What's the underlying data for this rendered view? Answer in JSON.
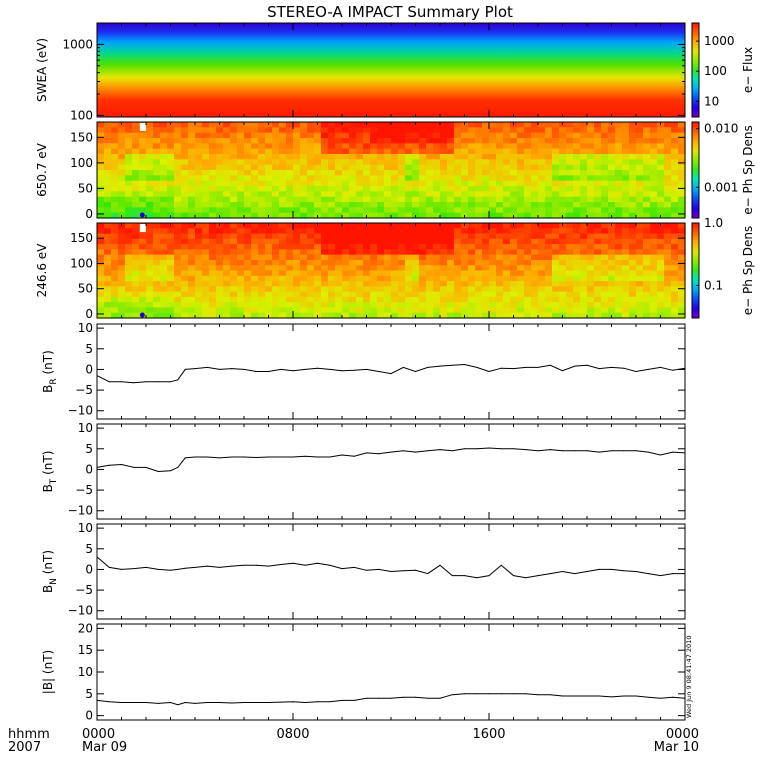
{
  "title": "STEREO-A IMPACT Summary Plot",
  "stamp": "Wed Jun 9 08:41:47 2010",
  "time_axis": {
    "corner_labels": [
      "hhmm",
      "2007"
    ],
    "ticks": [
      {
        "hour": 0,
        "label": "0000",
        "sub": "Mar 09"
      },
      {
        "hour": 8,
        "label": "0800",
        "sub": ""
      },
      {
        "hour": 16,
        "label": "1600",
        "sub": ""
      },
      {
        "hour": 24,
        "label": "0000",
        "sub": "Mar 10"
      }
    ],
    "range_hours": [
      0,
      24
    ]
  },
  "chart_data": [
    {
      "type": "heatmap",
      "ylabel": "SWEA (eV)",
      "yscale": "log",
      "ylim": [
        95,
        2000
      ],
      "yticks": [
        100,
        1000
      ],
      "ytick_labels": [
        "100",
        "1000"
      ],
      "colorbar": {
        "label": "e− Flux",
        "scale": "log",
        "range": [
          3,
          4000
        ],
        "ticks": [
          10,
          100,
          1000
        ],
        "tick_labels": [
          "10",
          "100",
          "1000"
        ]
      },
      "colors": {
        "low": "#1a00d8",
        "mid": "#38e000",
        "high": "#ff2000"
      }
    },
    {
      "type": "heatmap",
      "ylabel": "650.7 eV",
      "ylim": [
        -8,
        180
      ],
      "yticks": [
        0,
        50,
        100,
        150
      ],
      "ytick_labels": [
        "0",
        "50",
        "100",
        "150"
      ],
      "colorbar": {
        "label": "e− Ph Sp Dens",
        "scale": "log",
        "range": [
          0.0003,
          0.013
        ],
        "ticks": [
          0.001,
          0.01
        ],
        "tick_labels": [
          "0.001",
          "0.010"
        ]
      }
    },
    {
      "type": "heatmap",
      "ylabel": "246.6 eV",
      "ylim": [
        -8,
        180
      ],
      "yticks": [
        0,
        50,
        100,
        150
      ],
      "ytick_labels": [
        "0",
        "50",
        "100",
        "150"
      ],
      "colorbar": {
        "label": "e− Ph Sp Dens",
        "scale": "log",
        "range": [
          0.03,
          1.0
        ],
        "ticks": [
          0.1,
          1.0
        ],
        "tick_labels": [
          "0.1",
          "1.0"
        ]
      }
    },
    {
      "type": "line",
      "ylabel_main": "B",
      "ylabel_sub": "R",
      "ylabel_unit": " (nT)",
      "ylim": [
        -12,
        11
      ],
      "yticks": [
        -10,
        -5,
        0,
        5,
        10
      ],
      "ytick_labels": [
        "−10",
        "−5",
        "0",
        "5",
        "10"
      ],
      "x": [
        0,
        0.5,
        1,
        1.5,
        2,
        2.5,
        3,
        3.3,
        3.6,
        4,
        4.5,
        5,
        5.5,
        6,
        6.5,
        7,
        7.5,
        8,
        8.5,
        9,
        9.5,
        10,
        10.5,
        11,
        11.5,
        12,
        12.5,
        13,
        13.5,
        14,
        14.5,
        15,
        15.5,
        16,
        16.5,
        17,
        17.5,
        18,
        18.5,
        19,
        19.5,
        20,
        20.5,
        21,
        21.5,
        22,
        22.5,
        23,
        23.5,
        24
      ],
      "y": [
        -1.5,
        -3,
        -3,
        -3.2,
        -3,
        -3,
        -3,
        -2.5,
        0,
        0.2,
        0.5,
        0,
        0.2,
        0,
        -0.5,
        -0.5,
        0,
        -0.3,
        0,
        0.3,
        0,
        -0.3,
        -0.2,
        0,
        -0.5,
        -1,
        0.5,
        -0.5,
        0.5,
        0.8,
        1,
        1.2,
        0.5,
        -0.5,
        0.3,
        0.2,
        0.5,
        0.5,
        1,
        -0.3,
        0.8,
        1,
        0.2,
        0.5,
        0.3,
        -0.5,
        0,
        0.5,
        -0.2,
        0.3
      ]
    },
    {
      "type": "line",
      "ylabel_main": "B",
      "ylabel_sub": "T",
      "ylabel_unit": " (nT)",
      "ylim": [
        -12,
        11
      ],
      "yticks": [
        -10,
        -5,
        0,
        5,
        10
      ],
      "ytick_labels": [
        "−10",
        "−5",
        "0",
        "5",
        "10"
      ],
      "x": [
        0,
        0.5,
        1,
        1.5,
        2,
        2.5,
        3,
        3.3,
        3.6,
        4,
        4.5,
        5,
        5.5,
        6,
        6.5,
        7,
        7.5,
        8,
        8.5,
        9,
        9.5,
        10,
        10.5,
        11,
        11.5,
        12,
        12.5,
        13,
        13.5,
        14,
        14.5,
        15,
        15.5,
        16,
        16.5,
        17,
        17.5,
        18,
        18.5,
        19,
        19.5,
        20,
        20.5,
        21,
        21.5,
        22,
        22.5,
        23,
        23.5,
        24
      ],
      "y": [
        0.5,
        1,
        1.2,
        0.5,
        0.5,
        -0.5,
        -0.3,
        0.5,
        2.8,
        3,
        3,
        2.8,
        3,
        3,
        2.9,
        3,
        3,
        3,
        3.2,
        3,
        3,
        3.5,
        3.2,
        4,
        3.8,
        4.2,
        4.5,
        4.2,
        4.5,
        4.8,
        4.5,
        5,
        5,
        5.2,
        5,
        5,
        4.8,
        4.5,
        4.8,
        4.5,
        4.5,
        4.5,
        4.2,
        4.5,
        4.5,
        4.5,
        4.2,
        3.5,
        4.2,
        4
      ]
    },
    {
      "type": "line",
      "ylabel_main": "B",
      "ylabel_sub": "N",
      "ylabel_unit": " (nT)",
      "ylim": [
        -12,
        11
      ],
      "yticks": [
        -10,
        -5,
        0,
        5,
        10
      ],
      "ytick_labels": [
        "−10",
        "−5",
        "0",
        "5",
        "10"
      ],
      "x": [
        0,
        0.5,
        1,
        1.5,
        2,
        2.5,
        3,
        3.3,
        3.6,
        4,
        4.5,
        5,
        5.5,
        6,
        6.5,
        7,
        7.5,
        8,
        8.5,
        9,
        9.5,
        10,
        10.5,
        11,
        11.5,
        12,
        12.5,
        13,
        13.5,
        14,
        14.5,
        15,
        15.5,
        16,
        16.5,
        17,
        17.5,
        18,
        18.5,
        19,
        19.5,
        20,
        20.5,
        21,
        21.5,
        22,
        22.5,
        23,
        23.5,
        24
      ],
      "y": [
        3,
        0.5,
        0,
        0.2,
        0.5,
        0,
        -0.2,
        0,
        0.3,
        0.5,
        0.8,
        0.5,
        0.8,
        1,
        1,
        0.8,
        1.2,
        1.5,
        1,
        1.5,
        1,
        0.2,
        0.5,
        -0.2,
        0,
        -0.5,
        -0.3,
        -0.2,
        -1,
        1,
        -1.5,
        -1.5,
        -2,
        -1.5,
        1,
        -1.5,
        -2,
        -1.5,
        -1,
        -0.5,
        -1,
        -0.5,
        0,
        0,
        -0.3,
        -0.5,
        -1,
        -1.5,
        -1,
        -1
      ]
    },
    {
      "type": "line",
      "ylabel_main": "|B|",
      "ylabel_sub": "",
      "ylabel_unit": " (nT)",
      "ylim": [
        -1,
        21
      ],
      "yticks": [
        0,
        5,
        10,
        15,
        20
      ],
      "ytick_labels": [
        "0",
        "5",
        "10",
        "15",
        "20"
      ],
      "x": [
        0,
        0.5,
        1,
        1.5,
        2,
        2.5,
        3,
        3.3,
        3.6,
        4,
        4.5,
        5,
        5.5,
        6,
        6.5,
        7,
        7.5,
        8,
        8.5,
        9,
        9.5,
        10,
        10.5,
        11,
        11.5,
        12,
        12.5,
        13,
        13.5,
        14,
        14.5,
        15,
        15.5,
        16,
        16.5,
        17,
        17.5,
        18,
        18.5,
        19,
        19.5,
        20,
        20.5,
        21,
        21.5,
        22,
        22.5,
        23,
        23.5,
        24
      ],
      "y": [
        3.5,
        3.2,
        3,
        3,
        3,
        2.8,
        3,
        2.5,
        3,
        2.8,
        3,
        3,
        2.9,
        3,
        3,
        3,
        3.1,
        3.2,
        3,
        3.2,
        3.2,
        3.5,
        3.5,
        4,
        4,
        4,
        4.2,
        4.2,
        4,
        4,
        4.8,
        5,
        5,
        5,
        5,
        5,
        5,
        4.8,
        4.8,
        4.5,
        4.5,
        4.5,
        4.5,
        4.3,
        4.5,
        4.5,
        4.2,
        4,
        4.2,
        4
      ]
    }
  ]
}
